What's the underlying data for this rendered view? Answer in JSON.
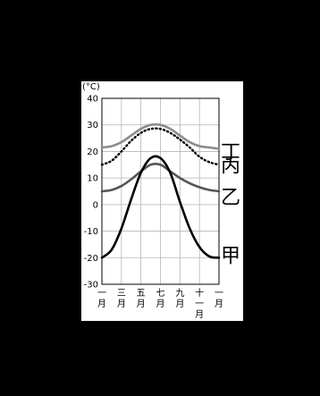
{
  "chart_data": {
    "type": "line",
    "unit_label": "(°C)",
    "ylim": [
      -30,
      40
    ],
    "yticks": [
      "40",
      "30",
      "20",
      "10",
      "0",
      "-10",
      "-20",
      "-30"
    ],
    "xticks": [
      "一月",
      "三月",
      "五月",
      "七月",
      "九月",
      "十一月",
      "一月"
    ],
    "x": [
      1,
      2,
      3,
      4,
      5,
      6,
      7,
      8,
      9,
      10,
      11,
      12,
      13
    ],
    "grid": true,
    "series": [
      {
        "name": "丁",
        "style": "solid",
        "color": "#8c8c8c",
        "values": [
          21.5,
          22,
          23.5,
          26,
          28.5,
          30,
          30,
          28.5,
          26,
          23.5,
          22,
          21.5,
          21
        ]
      },
      {
        "name": "丙",
        "style": "dotted",
        "color": "#000000",
        "values": [
          15,
          16.5,
          20,
          24,
          27,
          28.5,
          28.5,
          27,
          24.5,
          21.5,
          18,
          16,
          15
        ]
      },
      {
        "name": "乙",
        "style": "solid",
        "color": "#555555",
        "values": [
          5,
          5.5,
          7,
          9.5,
          12.5,
          15,
          15,
          12.5,
          10,
          8,
          6.5,
          5.5,
          5
        ]
      },
      {
        "name": "甲",
        "style": "solid",
        "color": "#000000",
        "values": [
          -20,
          -17,
          -9,
          2,
          12,
          17.5,
          17.5,
          12,
          1,
          -9,
          -16,
          -19.5,
          -20
        ]
      }
    ]
  }
}
